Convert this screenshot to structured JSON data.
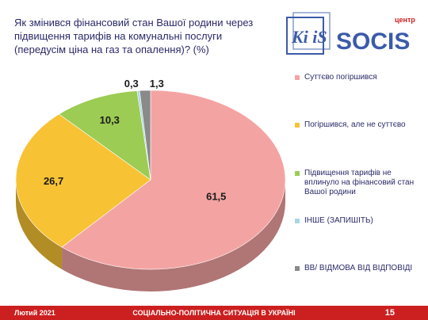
{
  "title": "Як змінився фінансовий стан Вашої родини через підвищення тарифів на комунальні послуги (передусім ціна на газ та опалення)? (%)",
  "logo": {
    "kiis": "Ki iS",
    "brand": "SOCIS",
    "brand_small": "центр"
  },
  "footer": {
    "date": "Лютий 2021",
    "center": "СОЦІАЛЬНО-ПОЛІТИЧНА СИТУАЦІЯ В УКРАЇНІ",
    "page": "15"
  },
  "chart_data": {
    "type": "pie",
    "style": "3d",
    "legend_position": "right",
    "categories": [
      "Суттєво погіршився",
      "Погіршився, але не суттєво",
      "Підвищення тарифів не вплинуло на фінансовий стан Вашої родини",
      "ІНШЕ (ЗАПИШІТЬ)",
      "ВВ/ ВІДМОВА ВІД ВІДПОВІДІ"
    ],
    "values": [
      61.5,
      26.7,
      10.3,
      0.3,
      1.3
    ],
    "labels": [
      "61,5",
      "26,7",
      "10,3",
      "0,3",
      "1,3"
    ],
    "colors": [
      "#f4a3a3",
      "#f7c234",
      "#9ccc53",
      "#a9d8e6",
      "#8a8a8a"
    ]
  }
}
